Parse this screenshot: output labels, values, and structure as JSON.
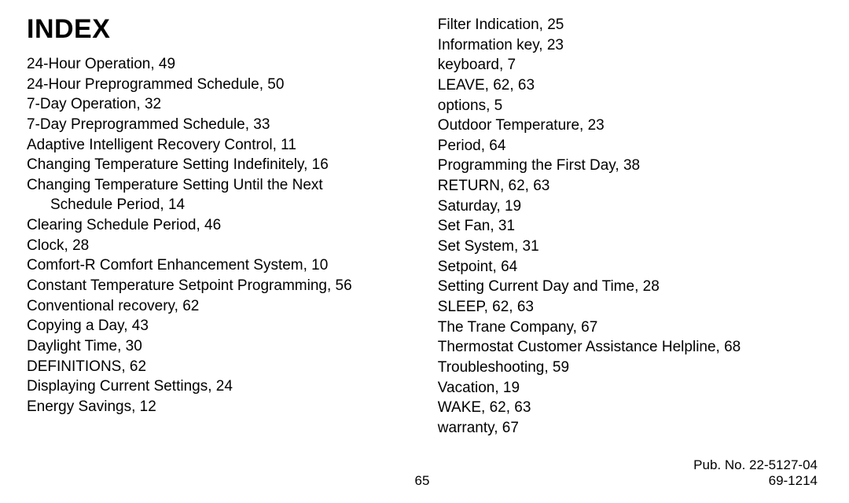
{
  "title": "INDEX",
  "columns": {
    "left": [
      {
        "text": "24-Hour Operation, 49"
      },
      {
        "text": "24-Hour Preprogrammed Schedule, 50"
      },
      {
        "text": "7-Day Operation, 32"
      },
      {
        "text": "7-Day Preprogrammed Schedule, 33"
      },
      {
        "text": "Adaptive Intelligent Recovery Control, 11"
      },
      {
        "text": "Changing Temperature Setting Indefinitely, 16"
      },
      {
        "text": "Changing Temperature Setting Until the Next"
      },
      {
        "text": "Schedule Period, 14",
        "hanging": true
      },
      {
        "text": "Clearing Schedule Period, 46"
      },
      {
        "text": "Clock, 28"
      },
      {
        "text": "Comfort-R Comfort Enhancement System, 10"
      },
      {
        "text": "Constant Temperature Setpoint Programming, 56"
      },
      {
        "text": "Conventional recovery, 62"
      },
      {
        "text": "Copying a Day, 43"
      },
      {
        "text": "Daylight Time, 30"
      },
      {
        "text": "DEFINITIONS, 62"
      },
      {
        "text": "Displaying Current Settings, 24"
      },
      {
        "text": "Energy Savings, 12"
      }
    ],
    "right": [
      {
        "text": "Filter Indication, 25"
      },
      {
        "text": "Information key, 23"
      },
      {
        "text": "keyboard, 7"
      },
      {
        "text": "LEAVE, 62, 63"
      },
      {
        "text": "options, 5"
      },
      {
        "text": "Outdoor Temperature, 23"
      },
      {
        "text": "Period, 64"
      },
      {
        "text": "Programming the First Day, 38"
      },
      {
        "text": "RETURN, 62, 63"
      },
      {
        "text": "Saturday, 19"
      },
      {
        "text": "Set Fan, 31"
      },
      {
        "text": "Set System, 31"
      },
      {
        "text": "Setpoint, 64"
      },
      {
        "text": "Setting Current Day and Time, 28"
      },
      {
        "text": "SLEEP, 62, 63"
      },
      {
        "text": "The Trane Company, 67"
      },
      {
        "text": "Thermostat Customer Assistance Helpline, 68"
      },
      {
        "text": "Troubleshooting, 59"
      },
      {
        "text": "Vacation, 19"
      },
      {
        "text": "WAKE, 62, 63"
      },
      {
        "text": "warranty, 67"
      }
    ]
  },
  "footer": {
    "pub_no": "Pub. No. 22-5127-04",
    "page": "65",
    "doc": "69-1214"
  }
}
